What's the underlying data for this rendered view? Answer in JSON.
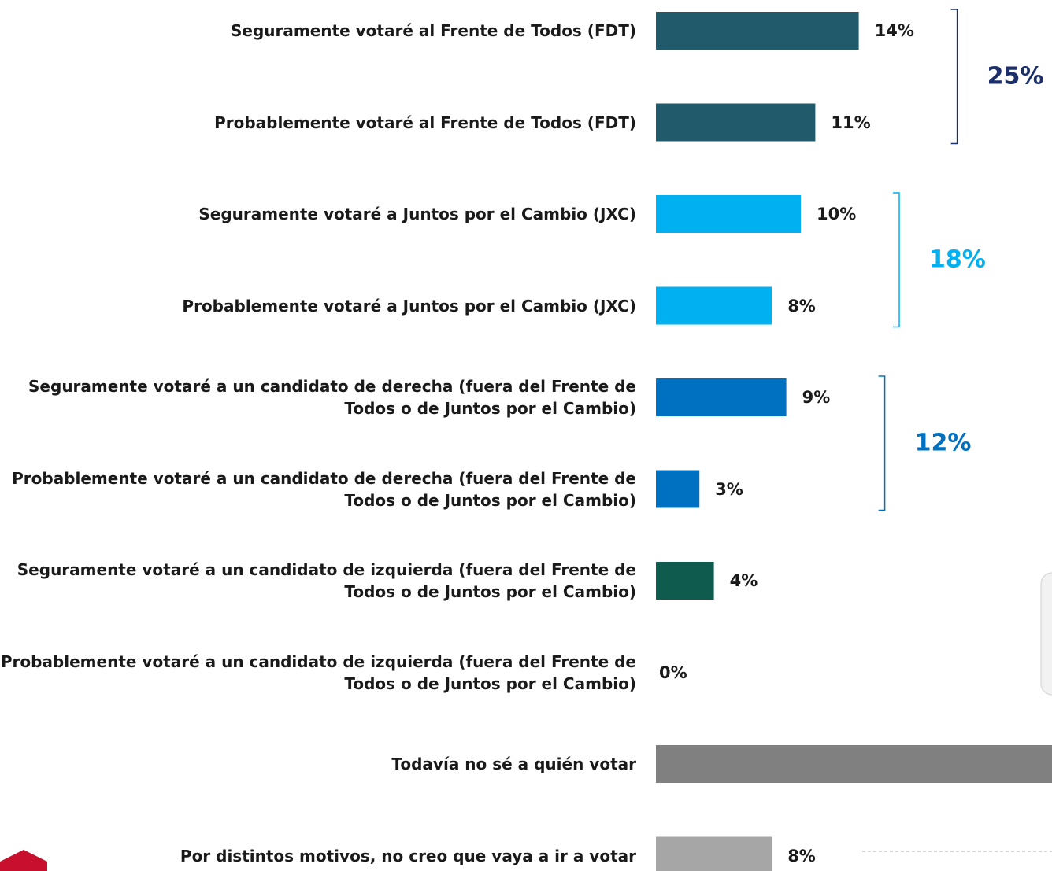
{
  "chart_data": {
    "type": "bar",
    "orientation": "horizontal",
    "categories": [
      "Seguramente votaré al Frente de Todos (FDT)",
      "Probablemente votaré al Frente de Todos (FDT)",
      "Seguramente votaré a Juntos por el Cambio (JXC)",
      "Probablemente votaré a Juntos por el Cambio (JXC)",
      "Seguramente votaré a un candidato de derecha (fuera del Frente de Todos o de Juntos por el Cambio)",
      "Probablemente votaré a un candidato de derecha (fuera del Frente de Todos o de Juntos por el Cambio)",
      "Seguramente votaré a un candidato de izquierda (fuera del Frente de Todos o de Juntos por el Cambio)",
      "Probablemente votaré a un candidato de izquierda (fuera del Frente de Todos o de Juntos por el Cambio)",
      "Todavía no sé a quién votar",
      "Por distintos motivos, no creo que vaya a ir a votar"
    ],
    "values": [
      14,
      11,
      10,
      8,
      9,
      3,
      4,
      0,
      33,
      8
    ],
    "value_labels": [
      "14%",
      "11%",
      "10%",
      "8%",
      "9%",
      "3%",
      "4%",
      "0%",
      null,
      "8%"
    ],
    "colors": [
      "#215a6a",
      "#215a6a",
      "#00b0f0",
      "#00b0f0",
      "#0070c0",
      "#0070c0",
      "#0f5c4f",
      "#0f5c4f",
      "#808080",
      "#a6a6a6"
    ],
    "xlim": [
      0,
      40
    ],
    "groups": [
      {
        "label": "25%",
        "value": 25,
        "color": "#1b2f6b"
      },
      {
        "label": "18%",
        "value": 18,
        "color": "#00b0f0"
      },
      {
        "label": "12%",
        "value": 12,
        "color": "#0070c0"
      }
    ]
  }
}
